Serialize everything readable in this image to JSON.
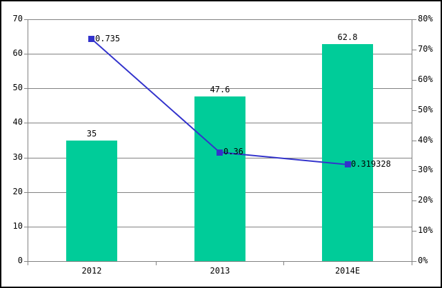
{
  "chart_data": {
    "type": "bar+line",
    "title": "",
    "legend": "none",
    "grid": "horizontal-from-left-axis",
    "categories": [
      "2012",
      "2013",
      "2014E"
    ],
    "series": [
      {
        "name": "bar-series",
        "type": "bar",
        "axis": "left",
        "values": [
          35,
          47.6,
          62.8
        ],
        "data_labels": [
          "35",
          "47.6",
          "62.8"
        ],
        "color": "#00CC99"
      },
      {
        "name": "line-series",
        "type": "line",
        "axis": "right",
        "values": [
          0.735,
          0.36,
          0.319328
        ],
        "data_labels": [
          "0.735",
          "0.36",
          "0.319328"
        ],
        "color": "#3333CC",
        "marker": "square"
      }
    ],
    "left_axis": {
      "min": 0,
      "max": 70,
      "step": 10,
      "tick_labels": [
        "0",
        "10",
        "20",
        "30",
        "40",
        "50",
        "60",
        "70"
      ]
    },
    "right_axis": {
      "min": 0,
      "max": 0.8,
      "step": 0.1,
      "tick_labels": [
        "0%",
        "10%",
        "20%",
        "30%",
        "40%",
        "50%",
        "60%",
        "70%",
        "80%"
      ]
    }
  },
  "colors": {
    "bar": "#00CC99",
    "line": "#3333CC",
    "marker": "#3333CC",
    "grid": "#808080",
    "axis": "#808080",
    "label_text": "#000000",
    "background": "#FFFFFF",
    "border": "#000000"
  }
}
